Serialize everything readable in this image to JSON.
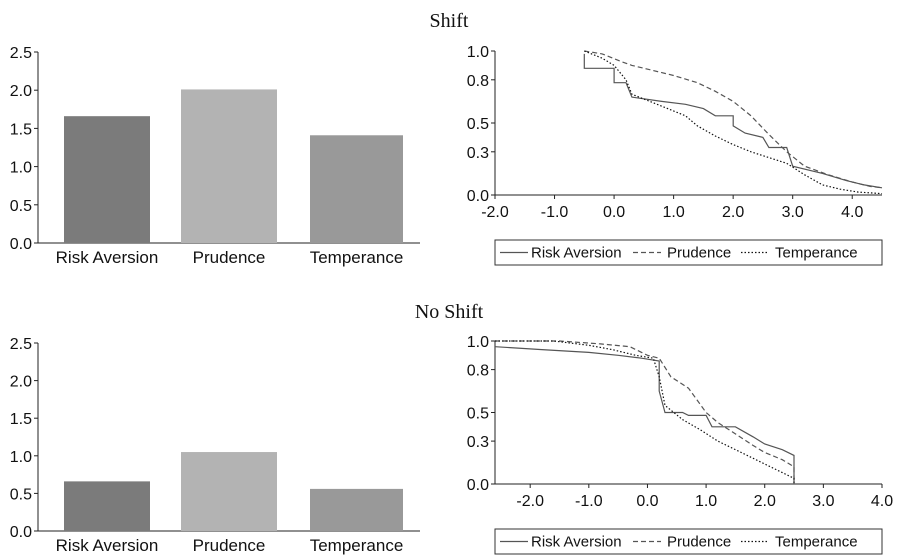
{
  "panels": [
    {
      "title": "Shift",
      "bar": {
        "type": "bar",
        "categories": [
          "Risk Aversion",
          "Prudence",
          "Temperance"
        ],
        "values": [
          1.66,
          2.01,
          1.41
        ],
        "colors": [
          "#7b7b7b",
          "#b3b3b3",
          "#999999"
        ],
        "ylim": [
          0,
          2.5
        ],
        "yticks": [
          "0.0",
          "0.5",
          "1.0",
          "1.5",
          "2.0",
          "2.5"
        ]
      },
      "cdf": {
        "type": "line",
        "xlim": [
          -2.0,
          4.5
        ],
        "ylim": [
          0,
          1.0
        ],
        "xticks": [
          "-2.0",
          "-1.0",
          "0.0",
          "1.0",
          "2.0",
          "3.0",
          "4.0"
        ],
        "yticks": [
          "0.0",
          "0.3",
          "0.5",
          "0.8",
          "1.0"
        ],
        "legend_position": "bottom",
        "series": [
          {
            "name": "Risk Aversion",
            "style": "solid",
            "points": [
              [
                -0.5,
                0.98
              ],
              [
                -0.5,
                0.88
              ],
              [
                0,
                0.88
              ],
              [
                0,
                0.78
              ],
              [
                0.2,
                0.78
              ],
              [
                0.3,
                0.68
              ],
              [
                0.8,
                0.65
              ],
              [
                1.2,
                0.63
              ],
              [
                1.5,
                0.6
              ],
              [
                1.7,
                0.55
              ],
              [
                2.0,
                0.55
              ],
              [
                2.0,
                0.48
              ],
              [
                2.2,
                0.43
              ],
              [
                2.5,
                0.4
              ],
              [
                2.6,
                0.33
              ],
              [
                2.9,
                0.33
              ],
              [
                3.0,
                0.2
              ],
              [
                3.5,
                0.15
              ],
              [
                3.9,
                0.1
              ],
              [
                4.2,
                0.07
              ],
              [
                4.5,
                0.05
              ]
            ]
          },
          {
            "name": "Prudence",
            "style": "dashed",
            "points": [
              [
                -0.5,
                1.0
              ],
              [
                -0.2,
                0.98
              ],
              [
                0.1,
                0.93
              ],
              [
                0.3,
                0.9
              ],
              [
                0.6,
                0.87
              ],
              [
                1.0,
                0.83
              ],
              [
                1.4,
                0.78
              ],
              [
                1.7,
                0.72
              ],
              [
                2.0,
                0.65
              ],
              [
                2.3,
                0.55
              ],
              [
                2.6,
                0.42
              ],
              [
                2.9,
                0.3
              ],
              [
                3.2,
                0.2
              ],
              [
                3.6,
                0.14
              ],
              [
                4.0,
                0.09
              ],
              [
                4.3,
                0.06
              ],
              [
                4.5,
                0.05
              ]
            ]
          },
          {
            "name": "Temperance",
            "style": "dotted",
            "points": [
              [
                -0.5,
                1.0
              ],
              [
                -0.2,
                0.95
              ],
              [
                0,
                0.9
              ],
              [
                0.2,
                0.8
              ],
              [
                0.3,
                0.7
              ],
              [
                0.6,
                0.65
              ],
              [
                0.9,
                0.6
              ],
              [
                1.2,
                0.55
              ],
              [
                1.4,
                0.48
              ],
              [
                1.7,
                0.41
              ],
              [
                2.0,
                0.35
              ],
              [
                2.3,
                0.3
              ],
              [
                2.6,
                0.26
              ],
              [
                2.9,
                0.22
              ],
              [
                3.2,
                0.14
              ],
              [
                3.5,
                0.07
              ],
              [
                3.8,
                0.04
              ],
              [
                4.1,
                0.02
              ],
              [
                4.5,
                0.01
              ]
            ]
          }
        ]
      }
    },
    {
      "title": "No Shift",
      "bar": {
        "type": "bar",
        "categories": [
          "Risk Aversion",
          "Prudence",
          "Temperance"
        ],
        "values": [
          0.66,
          1.05,
          0.56
        ],
        "colors": [
          "#7b7b7b",
          "#b3b3b3",
          "#999999"
        ],
        "ylim": [
          0,
          2.5
        ],
        "yticks": [
          "0.0",
          "0.5",
          "1.0",
          "1.5",
          "2.0",
          "2.5"
        ]
      },
      "cdf": {
        "type": "line",
        "xlim": [
          -2.6,
          4.0
        ],
        "ylim": [
          0,
          1.0
        ],
        "xticks": [
          "-2.0",
          "-1.0",
          "0.0",
          "1.0",
          "2.0",
          "3.0",
          "4.0"
        ],
        "yticks": [
          "0.0",
          "0.3",
          "0.5",
          "0.8",
          "1.0"
        ],
        "legend_position": "bottom",
        "series": [
          {
            "name": "Risk Aversion",
            "style": "solid",
            "points": [
              [
                -2.6,
                0.96
              ],
              [
                -1.8,
                0.94
              ],
              [
                -1.0,
                0.92
              ],
              [
                -0.5,
                0.9
              ],
              [
                -0.1,
                0.88
              ],
              [
                0.2,
                0.86
              ],
              [
                0.2,
                0.65
              ],
              [
                0.3,
                0.5
              ],
              [
                0.6,
                0.5
              ],
              [
                0.7,
                0.48
              ],
              [
                1.0,
                0.48
              ],
              [
                1.1,
                0.4
              ],
              [
                1.5,
                0.4
              ],
              [
                1.8,
                0.33
              ],
              [
                2.0,
                0.28
              ],
              [
                2.3,
                0.24
              ],
              [
                2.5,
                0.2
              ],
              [
                2.5,
                0.0
              ]
            ]
          },
          {
            "name": "Prudence",
            "style": "dashed",
            "points": [
              [
                -2.6,
                1.0
              ],
              [
                -1.5,
                1.0
              ],
              [
                -0.8,
                0.98
              ],
              [
                -0.3,
                0.96
              ],
              [
                0.0,
                0.9
              ],
              [
                0.2,
                0.88
              ],
              [
                0.4,
                0.75
              ],
              [
                0.7,
                0.67
              ],
              [
                1.0,
                0.5
              ],
              [
                1.2,
                0.43
              ],
              [
                1.5,
                0.35
              ],
              [
                1.8,
                0.27
              ],
              [
                2.0,
                0.22
              ],
              [
                2.3,
                0.17
              ],
              [
                2.5,
                0.12
              ],
              [
                2.5,
                0.0
              ]
            ]
          },
          {
            "name": "Temperance",
            "style": "dotted",
            "points": [
              [
                -2.6,
                1.0
              ],
              [
                -1.6,
                1.0
              ],
              [
                -1.0,
                0.97
              ],
              [
                -0.6,
                0.94
              ],
              [
                -0.2,
                0.9
              ],
              [
                0.1,
                0.88
              ],
              [
                0.2,
                0.75
              ],
              [
                0.3,
                0.55
              ],
              [
                0.6,
                0.45
              ],
              [
                0.9,
                0.38
              ],
              [
                1.2,
                0.3
              ],
              [
                1.6,
                0.22
              ],
              [
                2.0,
                0.14
              ],
              [
                2.3,
                0.08
              ],
              [
                2.5,
                0.04
              ],
              [
                2.5,
                0.0
              ]
            ]
          }
        ]
      }
    }
  ]
}
